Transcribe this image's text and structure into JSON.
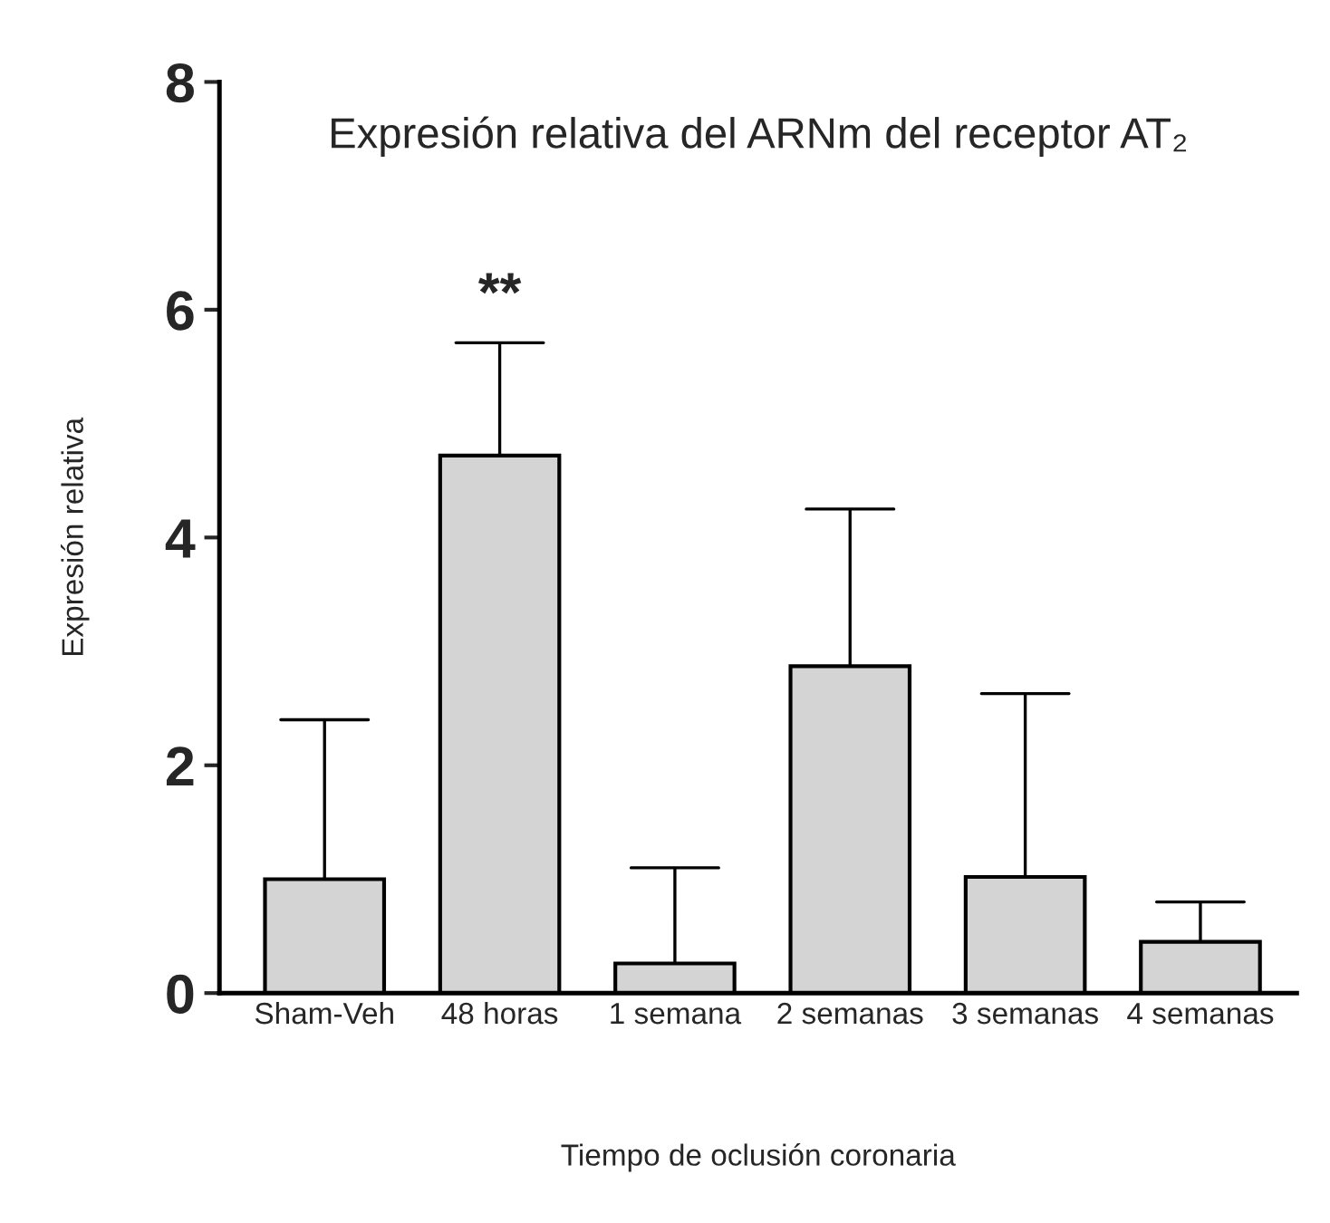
{
  "chart_data": {
    "type": "bar",
    "title": "Expresión relativa del ARNm del receptor AT₂",
    "xlabel": "Tiempo de oclusión coronaria",
    "ylabel": "Expresión relativa",
    "categories": [
      "Sham-Veh",
      "48 horas",
      "1 semana",
      "2 semanas",
      "3 semanas",
      "4 semanas"
    ],
    "values": [
      1.0,
      4.72,
      0.26,
      2.87,
      1.02,
      0.45
    ],
    "errors": [
      [
        1.0,
        2.4
      ],
      [
        4.72,
        5.71
      ],
      [
        0.26,
        1.1
      ],
      [
        2.87,
        4.25
      ],
      [
        1.02,
        2.63
      ],
      [
        0.45,
        0.8
      ]
    ],
    "color": "#d4d4d4",
    "ylim": [
      0,
      8
    ],
    "yticks": [
      0,
      2,
      4,
      6,
      8
    ],
    "annotations": [
      {
        "text": "**",
        "x": "48 horas",
        "y": 5.71
      }
    ],
    "grid": false,
    "legend": false
  }
}
